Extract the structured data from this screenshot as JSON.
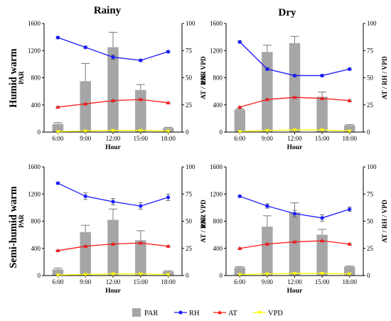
{
  "col_titles": [
    "Rainy",
    "Dry"
  ],
  "row_titles": [
    "Humid warm",
    "Semi-humid warm"
  ],
  "legend": [
    {
      "name": "PAR",
      "color": "#a6a6a6",
      "kind": "bar"
    },
    {
      "name": "RH",
      "color": "#1a1aff",
      "kind": "circle"
    },
    {
      "name": "AT",
      "color": "#ff1a1a",
      "kind": "triangle"
    },
    {
      "name": "VPD",
      "color": "#ffff00",
      "kind": "triangle-down"
    }
  ],
  "colors": {
    "PAR": "#a6a6a6",
    "RH": "#1a1aff",
    "AT": "#ff1a1a",
    "VPD": "#ffff00"
  },
  "chart_data": [
    {
      "type": "bar",
      "panel": "Humid warm / Rainy",
      "categories": [
        "6:00",
        "9:00",
        "12:00",
        "15:00",
        "18:00"
      ],
      "xlabel": "Hour",
      "ylabel": "PAR",
      "y2label": "AT / RH / VPD",
      "ylim": [
        0,
        1600
      ],
      "y2lim": [
        0,
        100
      ],
      "yticks": [
        0,
        400,
        800,
        1200,
        1600
      ],
      "y2ticks": [
        0,
        25,
        50,
        75,
        100
      ],
      "series": [
        {
          "name": "PAR",
          "axis": "left",
          "values": [
            120,
            750,
            1250,
            620,
            60
          ],
          "errors": [
            20,
            260,
            220,
            80,
            10
          ]
        },
        {
          "name": "RH",
          "axis": "right",
          "values": [
            87,
            78,
            69,
            66,
            74
          ],
          "errors": [
            1,
            1,
            2,
            1,
            1
          ]
        },
        {
          "name": "AT",
          "axis": "right",
          "values": [
            23,
            26,
            29,
            30,
            27
          ],
          "errors": [
            0.5,
            0.5,
            0.5,
            0.5,
            0.5
          ]
        },
        {
          "name": "VPD",
          "axis": "right",
          "values": [
            0.5,
            1,
            1.5,
            1.5,
            1
          ],
          "errors": [
            0,
            0,
            0,
            0,
            0
          ]
        }
      ]
    },
    {
      "type": "bar",
      "panel": "Humid warm / Dry",
      "categories": [
        "6:00",
        "9:00",
        "12:00",
        "15:00",
        "18:00"
      ],
      "xlabel": "Hour",
      "ylabel": "PAR",
      "y2label": "AT / RH / VPD",
      "ylim": [
        0,
        1600
      ],
      "y2lim": [
        0,
        100
      ],
      "yticks": [
        0,
        400,
        800,
        1200,
        1600
      ],
      "y2ticks": [
        0,
        25,
        50,
        75,
        100
      ],
      "series": [
        {
          "name": "PAR",
          "axis": "left",
          "values": [
            330,
            1180,
            1310,
            520,
            100
          ],
          "errors": [
            10,
            100,
            100,
            70,
            10
          ]
        },
        {
          "name": "RH",
          "axis": "right",
          "values": [
            83,
            58,
            52,
            52,
            58
          ],
          "errors": [
            1,
            1,
            1,
            1,
            1
          ]
        },
        {
          "name": "AT",
          "axis": "right",
          "values": [
            23,
            30,
            32,
            31,
            29
          ],
          "errors": [
            0.5,
            0.5,
            0.5,
            0.5,
            0.5
          ]
        },
        {
          "name": "VPD",
          "axis": "right",
          "values": [
            0.5,
            1.5,
            2,
            2,
            1
          ],
          "errors": [
            0,
            0,
            0,
            0,
            0
          ]
        }
      ]
    },
    {
      "type": "bar",
      "panel": "Semi-humid warm / Rainy",
      "categories": [
        "6:00",
        "9:00",
        "12:00",
        "15:00",
        "18:00"
      ],
      "xlabel": "Hour",
      "ylabel": "PAR",
      "y2label": "AT / RH / VPD",
      "ylim": [
        0,
        1600
      ],
      "y2lim": [
        0,
        100
      ],
      "yticks": [
        0,
        400,
        800,
        1200,
        1600
      ],
      "y2ticks": [
        0,
        25,
        50,
        75,
        100
      ],
      "series": [
        {
          "name": "PAR",
          "axis": "left",
          "values": [
            90,
            640,
            820,
            520,
            60
          ],
          "errors": [
            20,
            100,
            160,
            140,
            10
          ]
        },
        {
          "name": "RH",
          "axis": "right",
          "values": [
            85,
            73,
            68,
            64,
            72
          ],
          "errors": [
            1,
            3,
            3,
            3,
            3
          ]
        },
        {
          "name": "AT",
          "axis": "right",
          "values": [
            23,
            27,
            29,
            30,
            27
          ],
          "errors": [
            0.5,
            0.5,
            0.5,
            0.5,
            0.5
          ]
        },
        {
          "name": "VPD",
          "axis": "right",
          "values": [
            0.5,
            1,
            1.5,
            1.5,
            1
          ],
          "errors": [
            0,
            0,
            0,
            0,
            0
          ]
        }
      ]
    },
    {
      "type": "bar",
      "panel": "Semi-humid warm / Dry",
      "categories": [
        "6:00",
        "9:00",
        "12:00",
        "15:00",
        "18:00"
      ],
      "xlabel": "Hour",
      "ylabel": "PAR",
      "y2label": "AT / RH / VPD",
      "ylim": [
        0,
        1600
      ],
      "y2lim": [
        0,
        100
      ],
      "yticks": [
        0,
        400,
        800,
        1200,
        1600
      ],
      "y2ticks": [
        0,
        25,
        50,
        75,
        100
      ],
      "series": [
        {
          "name": "PAR",
          "axis": "left",
          "values": [
            120,
            720,
            930,
            600,
            130
          ],
          "errors": [
            10,
            160,
            140,
            80,
            10
          ]
        },
        {
          "name": "RH",
          "axis": "right",
          "values": [
            73,
            64,
            57,
            53,
            61
          ],
          "errors": [
            1,
            2,
            3,
            3,
            2
          ]
        },
        {
          "name": "AT",
          "axis": "right",
          "values": [
            25,
            29,
            31,
            32,
            29
          ],
          "errors": [
            0.5,
            0.5,
            0.5,
            0.5,
            0.5
          ]
        },
        {
          "name": "VPD",
          "axis": "right",
          "values": [
            1,
            1.5,
            2,
            2,
            1.5
          ],
          "errors": [
            0,
            0,
            0,
            0,
            0
          ]
        }
      ]
    }
  ]
}
